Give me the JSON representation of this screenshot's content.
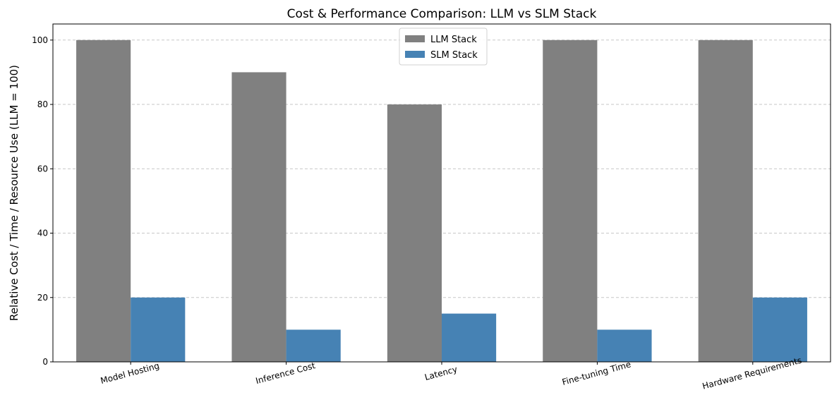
{
  "chart_data": {
    "type": "bar",
    "title": "Cost & Performance Comparison: LLM vs SLM Stack",
    "xlabel": "",
    "ylabel": "Relative Cost / Time / Resource Use (LLM = 100)",
    "categories": [
      "Model Hosting",
      "Inference Cost",
      "Latency",
      "Fine-tuning Time",
      "Hardware Requirements"
    ],
    "series": [
      {
        "name": "LLM Stack",
        "color": "#808080",
        "values": [
          100,
          90,
          80,
          100,
          100
        ]
      },
      {
        "name": "SLM Stack",
        "color": "#4682b4",
        "values": [
          20,
          10,
          15,
          10,
          20
        ]
      }
    ],
    "ylim": [
      0,
      105
    ],
    "yticks": [
      0,
      20,
      40,
      60,
      80,
      100
    ],
    "grid": "y-dashed",
    "legend_position": "top-center",
    "xtick_rotation_deg": 15
  }
}
